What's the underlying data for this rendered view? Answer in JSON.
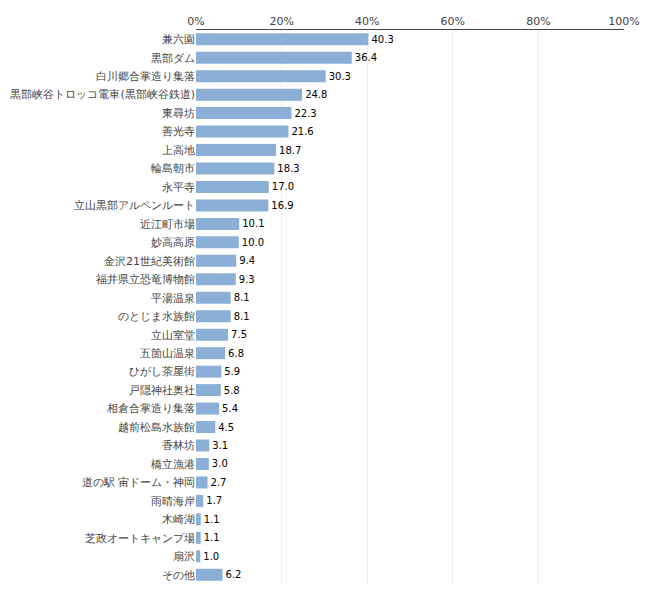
{
  "chart_data": {
    "type": "bar",
    "orientation": "horizontal",
    "categories": [
      "兼六園",
      "黒部ダム",
      "白川郷合掌造り集落",
      "黒部峡谷トロッコ電車(黒部峡谷鉄道)",
      "東尋坊",
      "善光寺",
      "上高地",
      "輪島朝市",
      "永平寺",
      "立山黒部アルペンルート",
      "近江町市場",
      "妙高高原",
      "金沢21世紀美術館",
      "福井県立恐竜博物館",
      "平湯温泉",
      "のとじま水族館",
      "立山室堂",
      "五箇山温泉",
      "ひがし茶屋街",
      "戸隠神社奥社",
      "相倉合掌造り集落",
      "越前松島水族館",
      "香林坊",
      "橋立漁港",
      "道の駅 宙ドーム・神岡",
      "雨晴海岸",
      "木崎湖",
      "芝政オートキャンプ場",
      "扇沢",
      "その他"
    ],
    "values": [
      40.3,
      36.4,
      30.3,
      24.8,
      22.3,
      21.6,
      18.7,
      18.3,
      17.0,
      16.9,
      10.1,
      10.0,
      9.4,
      9.3,
      8.1,
      8.1,
      7.5,
      6.8,
      5.9,
      5.8,
      5.4,
      4.5,
      3.1,
      3.0,
      2.7,
      1.7,
      1.1,
      1.1,
      1.0,
      6.2
    ],
    "value_labels": [
      "40.3",
      "36.4",
      "30.3",
      "24.8",
      "22.3",
      "21.6",
      "18.7",
      "18.3",
      "17.0",
      "16.9",
      "10.1",
      "10.0",
      "9.4",
      "9.3",
      "8.1",
      "8.1",
      "7.5",
      "6.8",
      "5.9",
      "5.8",
      "5.4",
      "4.5",
      "3.1",
      "3.0",
      "2.7",
      "1.7",
      "1.1",
      "1.1",
      "1.0",
      "6.2"
    ],
    "color": "#8BAFD6",
    "xlim": [
      0,
      100
    ],
    "xticks": [
      {
        "value": 0,
        "label": "0%"
      },
      {
        "value": 20,
        "label": "20%"
      },
      {
        "value": 40,
        "label": "40%"
      },
      {
        "value": 60,
        "label": "60%"
      },
      {
        "value": 80,
        "label": "80%"
      },
      {
        "value": 100,
        "label": "100%"
      }
    ],
    "grid": true,
    "data_labels": true
  }
}
